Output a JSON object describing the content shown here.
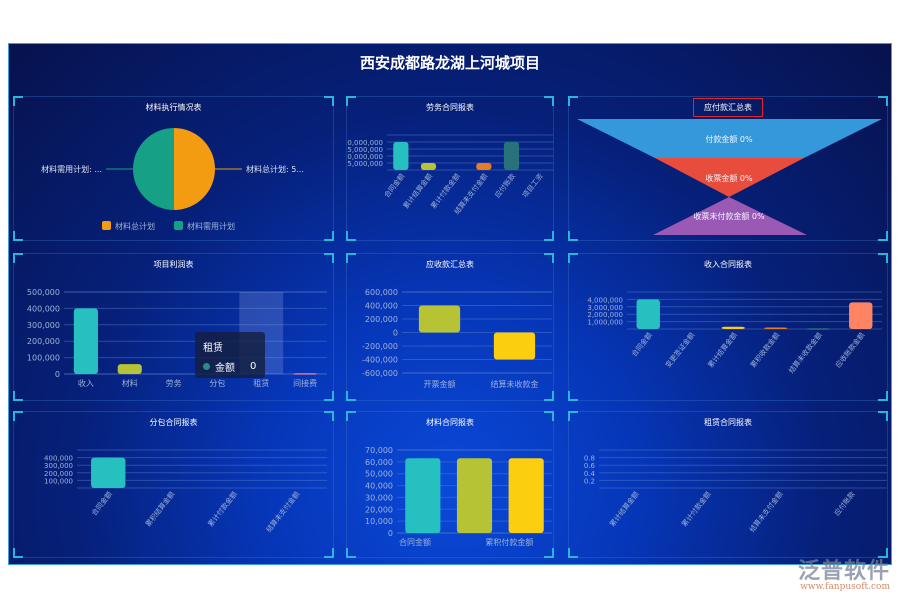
{
  "page_title": "西安成都路龙湖上河城项目",
  "watermark": {
    "logo": "泛普软件",
    "url": "www.fanpusoft.com"
  },
  "panels": {
    "material_exec": {
      "title": "材料执行情况表",
      "type": "pie",
      "slices": [
        {
          "name": "材料总计划",
          "value": 50,
          "color": "#f39c12",
          "label": "材料总计划: 5..."
        },
        {
          "name": "材料需用计划",
          "value": 50,
          "color": "#16a085",
          "label": "材料需用计划: ..."
        }
      ],
      "legend": [
        "材料总计划",
        "材料需用计划"
      ]
    },
    "labor_contract": {
      "title": "劳务合同报表",
      "type": "bar",
      "yticks": [
        "5,000,000",
        "10,000,000",
        "15,000,000",
        "20,000,000"
      ],
      "ylim": [
        0,
        25000000
      ],
      "categories": [
        "合同金额",
        "累计结算金额",
        "累计付款金额",
        "结算未支付金额",
        "应付账款",
        "项目工资"
      ],
      "values": [
        20000000,
        5000000,
        0,
        5000000,
        20000000,
        0
      ],
      "colors": [
        "#26c0c0",
        "#b5c334",
        "#fcce10",
        "#e87c25",
        "#27727b",
        "#fe8463"
      ]
    },
    "payable_summary": {
      "title": "应付款汇总表",
      "type": "funnel",
      "items": [
        {
          "label": "付款金额 0%",
          "color": "#3498db"
        },
        {
          "label": "收票金额 0%",
          "color": "#e74c3c"
        },
        {
          "label": "收票未付款金额 0%",
          "color": "#9b59b6"
        }
      ]
    },
    "project_profit": {
      "title": "项目利润表",
      "type": "bar",
      "yticks": [
        "0",
        "100,000",
        "200,000",
        "300,000",
        "400,000",
        "500,000"
      ],
      "ylim": [
        0,
        500000
      ],
      "categories": [
        "收入",
        "材料",
        "劳务",
        "分包",
        "租赁",
        "间接费"
      ],
      "values": [
        400000,
        60000,
        0,
        0,
        0,
        5000
      ],
      "colors": [
        "#26c0c0",
        "#b5c334",
        "#fcce10",
        "#e87c25",
        "#27727b",
        "#d87a80"
      ],
      "highlight_index": 4,
      "tooltip": {
        "title": "租赁",
        "series": "金额",
        "value": "0"
      }
    },
    "receivable_summary": {
      "title": "应收款汇总表",
      "type": "bar",
      "yticks": [
        "-600,000",
        "-400,000",
        "-200,000",
        "0",
        "200,000",
        "400,000",
        "600,000"
      ],
      "ylim": [
        -600000,
        600000
      ],
      "categories": [
        "开票金额",
        "结算未收款金"
      ],
      "values": [
        400000,
        -400000
      ],
      "colors": [
        "#b5c334",
        "#fcce10"
      ]
    },
    "income_contract": {
      "title": "收入合同报表",
      "type": "bar",
      "yticks": [
        "1,000,000",
        "2,000,000",
        "3,000,000",
        "4,000,000"
      ],
      "ylim": [
        0,
        5000000
      ],
      "categories": [
        "合同金额",
        "变更签证金额",
        "累计结算金额",
        "累积收款金额",
        "结算未收款金额",
        "应收账款金额"
      ],
      "values": [
        4000000,
        0,
        300000,
        200000,
        100000,
        3600000
      ],
      "colors": [
        "#26c0c0",
        "#b5c334",
        "#fcce10",
        "#e87c25",
        "#27727b",
        "#fe8463"
      ]
    },
    "subcontract": {
      "title": "分包合同报表",
      "type": "bar",
      "yticks": [
        "100,000",
        "200,000",
        "300,000",
        "400,000"
      ],
      "ylim": [
        0,
        500000
      ],
      "categories": [
        "合同金额",
        "累积结算金额",
        "累计付款金额",
        "结算未支付金额"
      ],
      "values": [
        400000,
        0,
        0,
        0
      ],
      "colors": [
        "#26c0c0",
        "#b5c334",
        "#fcce10",
        "#e87c25"
      ]
    },
    "material_contract": {
      "title": "材料合同报表",
      "type": "bar",
      "yticks": [
        "0",
        "10,000",
        "20,000",
        "30,000",
        "40,000",
        "50,000",
        "60,000",
        "70,000"
      ],
      "ylim": [
        0,
        70000
      ],
      "categories": [
        "合同金额",
        "",
        "累积付款金额"
      ],
      "values": [
        63000,
        63000,
        63000
      ],
      "colors": [
        "#26c0c0",
        "#b5c334",
        "#fcce10"
      ]
    },
    "lease_contract": {
      "title": "租赁合同报表",
      "type": "bar",
      "yticks": [
        "0.2",
        "0.4",
        "0.6",
        "0.8"
      ],
      "ylim": [
        0,
        1
      ],
      "categories": [
        "累计结算金额",
        "累计付款金额",
        "结算未支付金额",
        "应付账款"
      ],
      "values": [
        0,
        0,
        0,
        0
      ],
      "colors": [
        "#26c0c0",
        "#b5c334",
        "#fcce10",
        "#e87c25"
      ]
    }
  }
}
